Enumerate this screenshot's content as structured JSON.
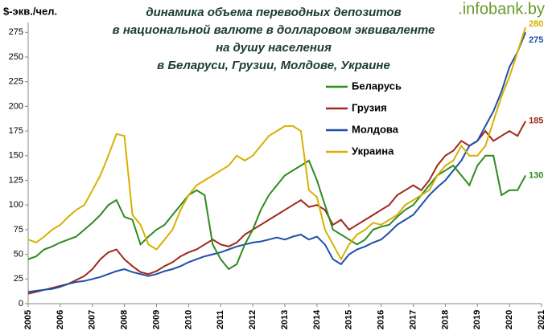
{
  "chart_data": {
    "type": "line",
    "logo": ".infobank.by",
    "ylabel": "$-экв./чел.",
    "title": [
      "динамика объема переводных депозитов",
      "в национальной валюте в долларовом эквиваленте",
      "на душу населения",
      "в Беларуси, Грузии, Молдове, Украине"
    ],
    "x": [
      2005,
      2005.25,
      2005.5,
      2005.75,
      2006,
      2006.25,
      2006.5,
      2006.75,
      2007,
      2007.25,
      2007.5,
      2007.75,
      2008,
      2008.25,
      2008.5,
      2008.75,
      2009,
      2009.25,
      2009.5,
      2009.75,
      2010,
      2010.25,
      2010.5,
      2010.75,
      2011,
      2011.25,
      2011.5,
      2011.75,
      2012,
      2012.25,
      2012.5,
      2012.75,
      2013,
      2013.25,
      2013.5,
      2013.75,
      2014,
      2014.25,
      2014.5,
      2014.75,
      2015,
      2015.25,
      2015.5,
      2015.75,
      2016,
      2016.25,
      2016.5,
      2016.75,
      2017,
      2017.25,
      2017.5,
      2017.75,
      2018,
      2018.25,
      2018.5,
      2018.75,
      2019,
      2019.25,
      2019.5,
      2019.75,
      2020,
      2020.25,
      2020.5
    ],
    "xlim": [
      2005,
      2021
    ],
    "xticks": [
      2005,
      2006,
      2007,
      2008,
      2009,
      2010,
      2011,
      2012,
      2013,
      2014,
      2015,
      2016,
      2017,
      2018,
      2019,
      2020,
      2021
    ],
    "ylim": [
      0,
      285
    ],
    "yticks": [
      0,
      25,
      50,
      75,
      100,
      125,
      150,
      175,
      200,
      225,
      250,
      275
    ],
    "series": [
      {
        "name": "Беларусь",
        "color": "#2e8b1e",
        "values": [
          45,
          48,
          55,
          58,
          62,
          65,
          68,
          75,
          82,
          90,
          100,
          105,
          88,
          85,
          60,
          68,
          75,
          80,
          90,
          100,
          110,
          115,
          110,
          60,
          45,
          35,
          40,
          60,
          75,
          95,
          110,
          120,
          130,
          135,
          140,
          145,
          125,
          100,
          75,
          70,
          65,
          60,
          65,
          75,
          78,
          80,
          88,
          95,
          100,
          110,
          120,
          130,
          135,
          140,
          130,
          120,
          140,
          150,
          150,
          110,
          115,
          115,
          130
        ]
      },
      {
        "name": "Грузия",
        "color": "#a0281a",
        "values": [
          10,
          12,
          14,
          16,
          18,
          20,
          24,
          28,
          35,
          45,
          52,
          55,
          45,
          38,
          32,
          30,
          33,
          38,
          42,
          48,
          52,
          55,
          60,
          65,
          60,
          58,
          62,
          70,
          75,
          80,
          85,
          90,
          95,
          100,
          105,
          98,
          100,
          95,
          80,
          85,
          75,
          80,
          85,
          90,
          95,
          100,
          110,
          115,
          120,
          115,
          125,
          140,
          150,
          155,
          165,
          160,
          165,
          175,
          165,
          170,
          175,
          170,
          185
        ]
      },
      {
        "name": "Молдова",
        "color": "#1f4fa8",
        "values": [
          12,
          13,
          14,
          15,
          17,
          20,
          22,
          23,
          25,
          27,
          30,
          33,
          35,
          32,
          30,
          28,
          30,
          33,
          35,
          38,
          42,
          45,
          48,
          50,
          52,
          55,
          58,
          60,
          62,
          63,
          65,
          67,
          65,
          68,
          70,
          65,
          68,
          60,
          45,
          40,
          50,
          55,
          58,
          62,
          65,
          72,
          80,
          85,
          90,
          100,
          110,
          118,
          125,
          135,
          145,
          160,
          165,
          180,
          195,
          215,
          240,
          255,
          275
        ]
      },
      {
        "name": "Украина",
        "color": "#d8b000",
        "values": [
          65,
          62,
          68,
          75,
          80,
          88,
          95,
          100,
          115,
          130,
          150,
          172,
          170,
          90,
          80,
          60,
          55,
          65,
          75,
          95,
          110,
          120,
          125,
          130,
          135,
          140,
          150,
          145,
          150,
          160,
          170,
          175,
          180,
          180,
          175,
          115,
          108,
          75,
          60,
          45,
          60,
          70,
          75,
          82,
          80,
          85,
          90,
          100,
          105,
          110,
          115,
          130,
          140,
          145,
          160,
          150,
          150,
          160,
          185,
          210,
          230,
          255,
          280
        ]
      }
    ]
  }
}
